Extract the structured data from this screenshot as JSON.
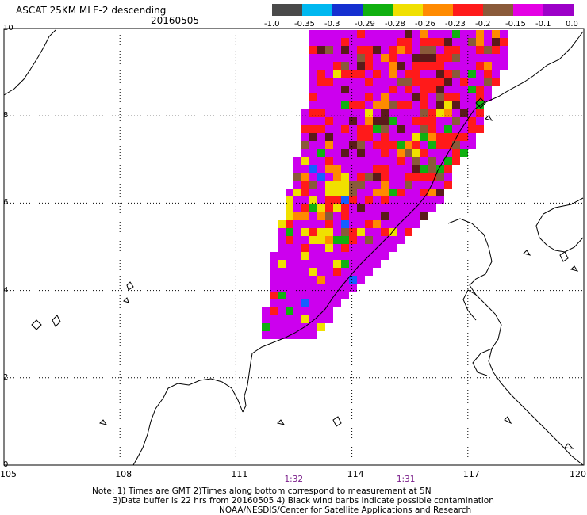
{
  "header": {
    "title": "ASCAT 25KM MLE-2 descending",
    "date": "20160505"
  },
  "colorbar": {
    "segments": [
      "#4a4a4a",
      "#00b8f0",
      "#1530d0",
      "#10b010",
      "#f0e000",
      "#ff8a00",
      "#ff1a1a",
      "#8a5a3a",
      "#e400e4",
      "#9c00c8"
    ],
    "labels": [
      "-1.0",
      "-0.35",
      "-0.3",
      "-0.29",
      "-0.28",
      "-0.26",
      "-0.23",
      "-0.2",
      "-0.15",
      "-0.1",
      "0.0"
    ]
  },
  "axes": {
    "lon_labels": [
      "105",
      "108",
      "111",
      "114",
      "117",
      "120"
    ],
    "lat_labels": [
      "0",
      "2",
      "4",
      "6",
      "8",
      "10"
    ],
    "lon_range": [
      105,
      120
    ],
    "lat_range": [
      0,
      10
    ],
    "grid": "dotted"
  },
  "times": [
    {
      "label": "1:32",
      "lon": 112.5
    },
    {
      "label": "1:31",
      "lon": 115.4
    }
  ],
  "notes": [
    "Note: 1) Times are GMT 2)Times along bottom correspond to measurement at 5N",
    "3)Data buffer is 22 hrs from 20160505 4) Black wind barbs indicate possible contamination",
    "NOAA/NESDIS/Center for Satellite Applications and Research"
  ],
  "swath": {
    "colors": [
      "#cc00ee",
      "#ff1a1a",
      "#ff8a00",
      "#f0e000",
      "#8a5a3a",
      "#5a1a1a",
      "#10b010",
      "#1560ff",
      "#00b8f0"
    ]
  }
}
